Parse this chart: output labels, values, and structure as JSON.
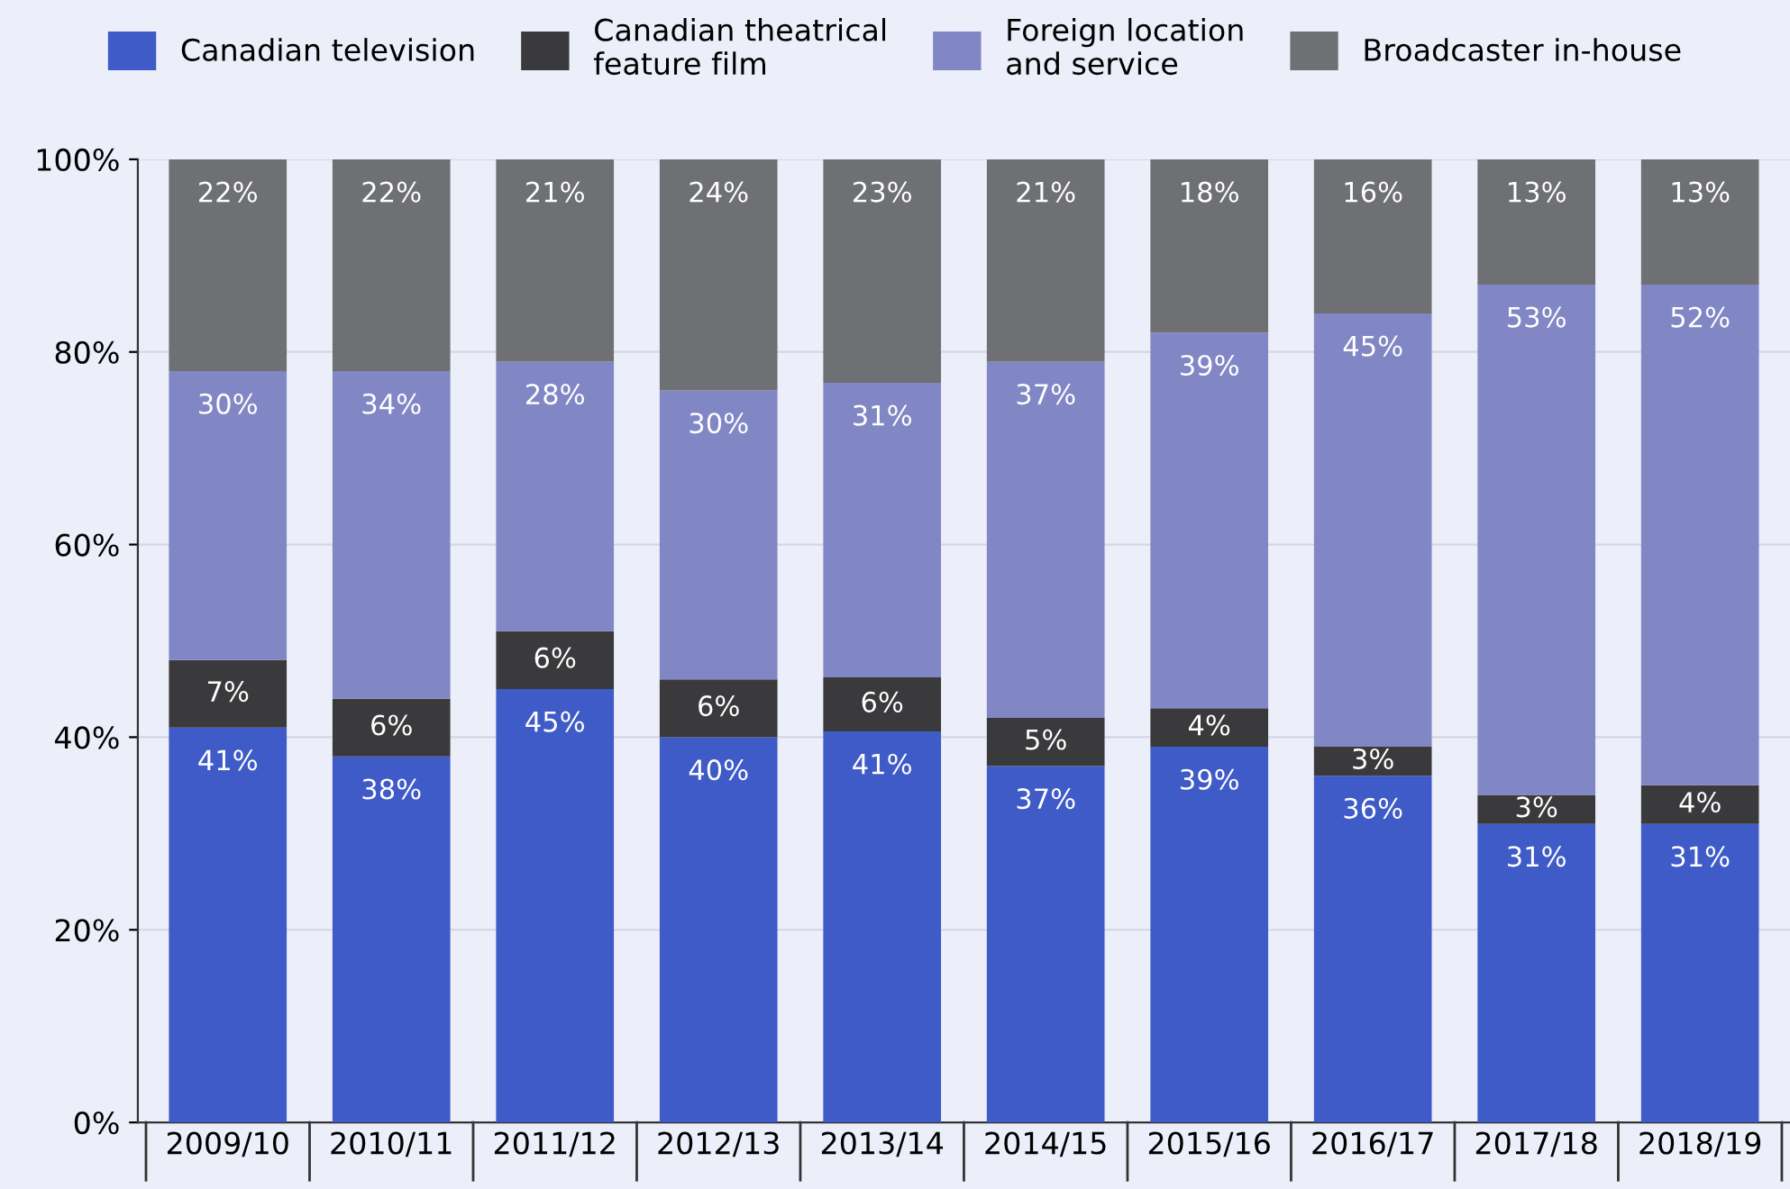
{
  "chart_data": {
    "type": "bar",
    "stacked": true,
    "categories": [
      "2009/10",
      "2010/11",
      "2011/12",
      "2012/13",
      "2013/14",
      "2014/15",
      "2015/16",
      "2016/17",
      "2017/18",
      "2018/19"
    ],
    "series": [
      {
        "name": "Canadian television",
        "color": "#3f5bc8",
        "values": [
          41,
          38,
          45,
          40,
          40.6,
          37,
          39,
          36,
          31,
          31
        ],
        "value_labels": [
          "41%",
          "38%",
          "45%",
          "40%",
          "41%",
          "37%",
          "39%",
          "36%",
          "31%",
          "31%"
        ]
      },
      {
        "name": "Canadian theatrical\nfeature film",
        "color": "#3a3a3d",
        "values": [
          7,
          6,
          6,
          6,
          5.6,
          5,
          4,
          3,
          3,
          4
        ],
        "value_labels": [
          "7%",
          "6%",
          "6%",
          "6%",
          "6%",
          "5%",
          "4%",
          "3%",
          "3%",
          "4%"
        ]
      },
      {
        "name": "Foreign location\nand service",
        "color": "#8187c4",
        "values": [
          30,
          34,
          28,
          30,
          30.6,
          37,
          39,
          45,
          53,
          52
        ],
        "value_labels": [
          "30%",
          "34%",
          "28%",
          "30%",
          "31%",
          "37%",
          "39%",
          "45%",
          "53%",
          "52%"
        ]
      },
      {
        "name": "Broadcaster in-house",
        "color": "#6f7073",
        "values": [
          22,
          22,
          21,
          24,
          23.2,
          21,
          18,
          16,
          13,
          13
        ],
        "value_labels": [
          "22%",
          "22%",
          "21%",
          "24%",
          "23%",
          "21%",
          "18%",
          "16%",
          "13%",
          "13%"
        ]
      }
    ],
    "ylim": [
      0,
      100
    ],
    "yticks": [
      {
        "value": 0,
        "label": "0%"
      },
      {
        "value": 20,
        "label": "20%"
      },
      {
        "value": 40,
        "label": "40%"
      },
      {
        "value": 60,
        "label": "60%"
      },
      {
        "value": 80,
        "label": "80%"
      },
      {
        "value": 100,
        "label": "100%"
      }
    ],
    "grid": "y",
    "legend": "top"
  }
}
